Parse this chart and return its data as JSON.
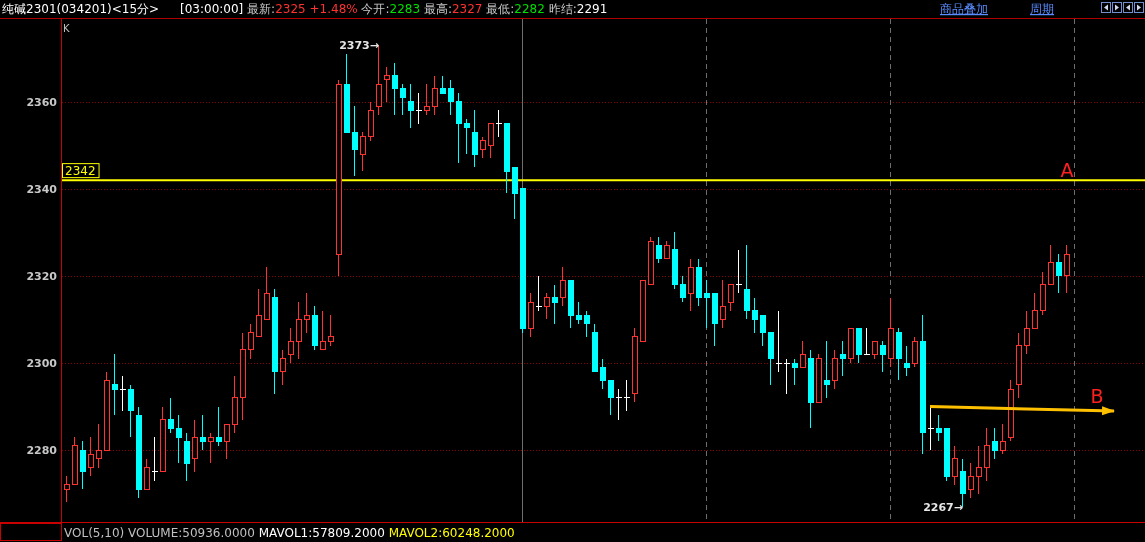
{
  "chart_data": {
    "type": "candlestick",
    "title": "纯碱2301(034201)<15分>",
    "subtitle": "[03:00:00] 最新:2325 +1.48% 今开:2283 最高:2327 最低:2282 昨结:2291",
    "categories": [
      null,
      null,
      null,
      null,
      null,
      null,
      null,
      null,
      null,
      null,
      null,
      null,
      null,
      null,
      null,
      null,
      null,
      null,
      null,
      null,
      null,
      null,
      null,
      null,
      null,
      null,
      null,
      null,
      null,
      null,
      null,
      null,
      null,
      null,
      null,
      null,
      null,
      null,
      null,
      null,
      null,
      null,
      null,
      null,
      null,
      null,
      null,
      null,
      null,
      null,
      null,
      null,
      null,
      null,
      null,
      null,
      null,
      null,
      null,
      null,
      null,
      null,
      null,
      null,
      null,
      null,
      null,
      null,
      null,
      null,
      null,
      null,
      null,
      null,
      null,
      null,
      null,
      null,
      null,
      null,
      null,
      null,
      null,
      null,
      null,
      null,
      null,
      null,
      null,
      null,
      null,
      null,
      null,
      null,
      null,
      null,
      null,
      null,
      null,
      null,
      null,
      null,
      null,
      null,
      null,
      null,
      null,
      null,
      null,
      null,
      null,
      null,
      null,
      null,
      null,
      null,
      null,
      null,
      null,
      null,
      null,
      null,
      null,
      null,
      null,
      null,
      null,
      null,
      null,
      null,
      null,
      null,
      null,
      null,
      null
    ],
    "ohlc": [
      [
        2271,
        2274,
        2268,
        2272
      ],
      [
        2272,
        2283,
        2272,
        2281
      ],
      [
        2280,
        2282,
        2271,
        2275
      ],
      [
        2276,
        2283,
        2274,
        2279
      ],
      [
        2278,
        2286,
        2276,
        2280
      ],
      [
        2280,
        2298,
        2280,
        2296
      ],
      [
        2295,
        2302,
        2288,
        2294
      ],
      [
        2294,
        2297,
        2289,
        2294
      ],
      [
        2294,
        2295,
        2283,
        2289
      ],
      [
        2288,
        2290,
        2269,
        2271
      ],
      [
        2271,
        2278,
        2271,
        2276
      ],
      [
        2275,
        2283,
        2273,
        2275
      ],
      [
        2275,
        2290,
        2275,
        2287
      ],
      [
        2287,
        2292,
        2284,
        2285
      ],
      [
        2285,
        2288,
        2277,
        2283
      ],
      [
        2282,
        2284,
        2273,
        2277
      ],
      [
        2278,
        2287,
        2275,
        2283
      ],
      [
        2283,
        2288,
        2280,
        2282
      ],
      [
        2282,
        2284,
        2277,
        2283
      ],
      [
        2283,
        2290,
        2281,
        2282
      ],
      [
        2282,
        2286,
        2278,
        2286
      ],
      [
        2286,
        2297,
        2284,
        2292
      ],
      [
        2292,
        2307,
        2287,
        2303
      ],
      [
        2303,
        2309,
        2301,
        2307
      ],
      [
        2306,
        2317,
        2306,
        2311
      ],
      [
        2310,
        2322,
        2310,
        2316
      ],
      [
        2315,
        2317,
        2293,
        2298
      ],
      [
        2298,
        2303,
        2295,
        2301
      ],
      [
        2302,
        2308,
        2300,
        2305
      ],
      [
        2305,
        2314,
        2301,
        2310
      ],
      [
        2310,
        2316,
        2307,
        2311
      ],
      [
        2311,
        2313,
        2303,
        2304
      ],
      [
        2303,
        2312,
        2303,
        2305
      ],
      [
        2305,
        2311,
        2304,
        2306
      ],
      [
        2325,
        2365,
        2320,
        2364
      ],
      [
        2364,
        2371,
        2353,
        2353
      ],
      [
        2353,
        2359,
        2343,
        2349
      ],
      [
        2348,
        2353,
        2344,
        2352
      ],
      [
        2352,
        2360,
        2351,
        2358
      ],
      [
        2359,
        2373,
        2357,
        2364
      ],
      [
        2365,
        2368,
        2360,
        2366
      ],
      [
        2366,
        2369,
        2357,
        2363
      ],
      [
        2363,
        2364,
        2357,
        2361
      ],
      [
        2360,
        2364,
        2354,
        2358
      ],
      [
        2358,
        2362,
        2355,
        2358
      ],
      [
        2358,
        2364,
        2357,
        2359
      ],
      [
        2359,
        2366,
        2357,
        2363
      ],
      [
        2363,
        2366,
        2362,
        2362
      ],
      [
        2363,
        2365,
        2357,
        2360
      ],
      [
        2360,
        2362,
        2346,
        2355
      ],
      [
        2355,
        2356,
        2348,
        2354
      ],
      [
        2353,
        2358,
        2345,
        2348
      ],
      [
        2349,
        2352,
        2347,
        2351
      ],
      [
        2350,
        2355,
        2347,
        2355
      ],
      [
        2355,
        2358,
        2352,
        2355
      ],
      [
        2355,
        2355,
        2339,
        2344
      ],
      [
        2345,
        2345,
        2333,
        2339
      ],
      [
        2340,
        2340,
        2307,
        2308
      ],
      [
        2308,
        2316,
        2306,
        2314
      ],
      [
        2313,
        2320,
        2312,
        2313
      ],
      [
        2313,
        2316,
        2310,
        2315
      ],
      [
        2315,
        2318,
        2309,
        2314
      ],
      [
        2315,
        2322,
        2313,
        2319
      ],
      [
        2319,
        2319,
        2308,
        2311
      ],
      [
        2311,
        2314,
        2309,
        2310
      ],
      [
        2311,
        2312,
        2306,
        2309
      ],
      [
        2307,
        2309,
        2298,
        2298
      ],
      [
        2299,
        2301,
        2294,
        2296
      ],
      [
        2296,
        2296,
        2288,
        2292
      ],
      [
        2292,
        2294,
        2287,
        2292
      ],
      [
        2292,
        2296,
        2289,
        2292
      ],
      [
        2293,
        2308,
        2291,
        2306
      ],
      [
        2305,
        2319,
        2305,
        2319
      ],
      [
        2318,
        2329,
        2318,
        2328
      ],
      [
        2327,
        2329,
        2323,
        2324
      ],
      [
        2324,
        2328,
        2324,
        2327
      ],
      [
        2326,
        2330,
        2317,
        2318
      ],
      [
        2318,
        2320,
        2314,
        2315
      ],
      [
        2316,
        2324,
        2312,
        2322
      ],
      [
        2322,
        2324,
        2313,
        2315
      ],
      [
        2316,
        2319,
        2308,
        2315
      ],
      [
        2316,
        2316,
        2304,
        2309
      ],
      [
        2310,
        2319,
        2308,
        2313
      ],
      [
        2314,
        2318,
        2312,
        2318
      ],
      [
        2318,
        2326,
        2316,
        2318
      ],
      [
        2317,
        2327,
        2310,
        2312
      ],
      [
        2312,
        2315,
        2307,
        2310
      ],
      [
        2311,
        2311,
        2304,
        2307
      ],
      [
        2307,
        2307,
        2295,
        2301
      ],
      [
        2300,
        2312,
        2298,
        2300
      ],
      [
        2300,
        2301,
        2293,
        2300
      ],
      [
        2300,
        2301,
        2295,
        2299
      ],
      [
        2299,
        2305,
        2299,
        2302
      ],
      [
        2301,
        2303,
        2285,
        2291
      ],
      [
        2291,
        2302,
        2291,
        2301
      ],
      [
        2296,
        2305,
        2292,
        2295
      ],
      [
        2296,
        2303,
        2294,
        2301
      ],
      [
        2302,
        2305,
        2297,
        2301
      ],
      [
        2301,
        2308,
        2300,
        2308
      ],
      [
        2308,
        2308,
        2300,
        2302
      ],
      [
        2302,
        2308,
        2302,
        2302
      ],
      [
        2302,
        2305,
        2301,
        2305
      ],
      [
        2304,
        2305,
        2298,
        2302
      ],
      [
        2301,
        2315,
        2299,
        2308
      ],
      [
        2307,
        2308,
        2296,
        2301
      ],
      [
        2300,
        2304,
        2297,
        2299
      ],
      [
        2300,
        2306,
        2299,
        2305
      ],
      [
        2305,
        2311,
        2279,
        2284
      ],
      [
        2285,
        2290,
        2280,
        2285
      ],
      [
        2285,
        2288,
        2282,
        2284
      ],
      [
        2285,
        2285,
        2273,
        2274
      ],
      [
        2274,
        2281,
        2272,
        2278
      ],
      [
        2275,
        2278,
        2267,
        2270
      ],
      [
        2271,
        2277,
        2269,
        2274
      ],
      [
        2274,
        2281,
        2270,
        2276
      ],
      [
        2276,
        2285,
        2273,
        2281
      ],
      [
        2282,
        2285,
        2278,
        2280
      ],
      [
        2280,
        2286,
        2279,
        2282
      ],
      [
        2283,
        2296,
        2282,
        2294
      ],
      [
        2295,
        2307,
        2292,
        2304
      ],
      [
        2304,
        2312,
        2302,
        2308
      ],
      [
        2308,
        2316,
        2308,
        2312
      ],
      [
        2312,
        2321,
        2311,
        2318
      ],
      [
        2318,
        2327,
        2318,
        2323
      ],
      [
        2323,
        2325,
        2316,
        2320
      ],
      [
        2320,
        2327,
        2316,
        2325
      ],
      null,
      null,
      null,
      null,
      null,
      null,
      null,
      null,
      null
    ],
    "colors": [
      "#ff3232",
      "#ff3232",
      "#00ffff",
      "#ff3232",
      "#ff3232",
      "#ff3232",
      "#00ffff",
      "#ffffff",
      "#00ffff",
      "#00ffff",
      "#ff3232",
      "#ffffff",
      "#ff3232",
      "#00ffff",
      "#00ffff",
      "#00ffff",
      "#ff3232",
      "#00ffff",
      "#ff3232",
      "#00ffff",
      "#ff3232",
      "#ff3232",
      "#ff3232",
      "#ff3232",
      "#ff3232",
      "#ff3232",
      "#00ffff",
      "#ff3232",
      "#ff3232",
      "#ff3232",
      "#ff3232",
      "#00ffff",
      "#ff3232",
      "#ff3232",
      "#ff3232",
      "#00ffff",
      "#00ffff",
      "#ff3232",
      "#ff3232",
      "#ff3232",
      "#ff3232",
      "#00ffff",
      "#00ffff",
      "#00ffff",
      "#ffffff",
      "#ff3232",
      "#ff3232",
      "#00ffff",
      "#00ffff",
      "#00ffff",
      "#00ffff",
      "#00ffff",
      "#ff3232",
      "#ff3232",
      "#ffffff",
      "#00ffff",
      "#00ffff",
      "#00ffff",
      "#ff3232",
      "#ffffff",
      "#ff3232",
      "#00ffff",
      "#ff3232",
      "#00ffff",
      "#00ffff",
      "#00ffff",
      "#00ffff",
      "#00ffff",
      "#00ffff",
      "#ffffff",
      "#ffffff",
      "#ff3232",
      "#ff3232",
      "#ff3232",
      "#00ffff",
      "#ff3232",
      "#00ffff",
      "#00ffff",
      "#ff3232",
      "#00ffff",
      "#00ffff",
      "#00ffff",
      "#ff3232",
      "#ff3232",
      "#ffffff",
      "#00ffff",
      "#00ffff",
      "#00ffff",
      "#00ffff",
      "#ffffff",
      "#ffffff",
      "#00ffff",
      "#ff3232",
      "#00ffff",
      "#ff3232",
      "#00ffff",
      "#ff3232",
      "#00ffff",
      "#ff3232",
      "#00ffff",
      "#ffffff",
      "#ff3232",
      "#00ffff",
      "#ff3232",
      "#00ffff",
      "#00ffff",
      "#ff3232",
      "#00ffff",
      "#ffffff",
      "#00ffff",
      "#00ffff",
      "#ff3232",
      "#00ffff",
      "#ff3232",
      "#ff3232",
      "#ff3232",
      "#00ffff",
      "#ff3232",
      "#ff3232",
      "#ff3232",
      "#ff3232",
      "#ff3232",
      "#ff3232",
      "#ff3232",
      "#00ffff",
      "#ff3232",
      null,
      null,
      null,
      null,
      null,
      null,
      null,
      null,
      null
    ],
    "ylim": [
      2263.5,
      2379
    ],
    "yticks": [
      2280,
      2300,
      2320,
      2340,
      2360
    ],
    "grid": "y",
    "tick_labels": "y",
    "ref_lines": [
      {
        "axis": "y",
        "value": 2342,
        "label": "2342",
        "color": "#ffff00"
      }
    ],
    "series": [
      {
        "type": "line",
        "name": "B",
        "color": "#ffc000",
        "values": [
          null,
          null,
          null,
          null,
          null,
          null,
          null,
          null,
          null,
          null,
          null,
          null,
          null,
          null,
          null,
          null,
          null,
          null,
          null,
          null,
          null,
          null,
          null,
          null,
          null,
          null,
          null,
          null,
          null,
          null,
          null,
          null,
          null,
          null,
          null,
          null,
          null,
          null,
          null,
          null,
          null,
          null,
          null,
          null,
          null,
          null,
          null,
          null,
          null,
          null,
          null,
          null,
          null,
          null,
          null,
          null,
          null,
          null,
          null,
          null,
          null,
          null,
          null,
          null,
          null,
          null,
          null,
          null,
          null,
          null,
          null,
          null,
          null,
          null,
          null,
          null,
          null,
          null,
          null,
          null,
          null,
          null,
          null,
          null,
          null,
          null,
          null,
          null,
          null,
          null,
          null,
          null,
          null,
          null,
          null,
          null,
          null,
          null,
          null,
          null,
          null,
          null,
          null,
          null,
          null,
          null,
          null,
          null,
          2290,
          null,
          null,
          null,
          null,
          null,
          null,
          null,
          null,
          null,
          null,
          null,
          null,
          null,
          null,
          null,
          null,
          null,
          null,
          null,
          null,
          null,
          null,
          2289,
          null,
          null,
          null
        ]
      }
    ],
    "annotations": [
      "K",
      "2373→",
      "2267→",
      "A",
      "商品叠加",
      "周期",
      "VOL(5,10) VOLUME:50936.0000 MAVOL1:57809.2000 MAVOL2:60248.2000"
    ]
  }
}
